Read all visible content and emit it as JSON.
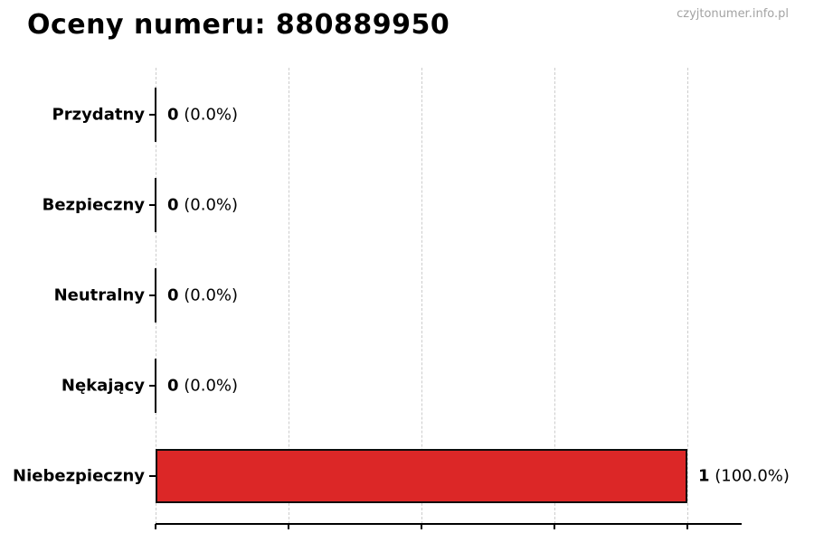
{
  "header": {
    "title": "Oceny numeru: 880889950",
    "watermark": "czyjtonumer.info.pl"
  },
  "chart_data": {
    "type": "bar",
    "orientation": "horizontal",
    "title": "Oceny numeru: 880889950",
    "categories": [
      "Przydatny",
      "Bezpieczny",
      "Neutralny",
      "Nękający",
      "Niebezpieczny"
    ],
    "values": [
      0,
      0,
      0,
      0,
      1
    ],
    "percentages": [
      0.0,
      0.0,
      0.0,
      0.0,
      100.0
    ],
    "value_labels": [
      "0 (0.0%)",
      "0 (0.0%)",
      "0 (0.0%)",
      "0 (0.0%)",
      "1 (100.0%)"
    ],
    "xlabel": "",
    "ylabel": "",
    "xlim": [
      0,
      1.1
    ],
    "gridline_values": [
      0,
      0.25,
      0.5,
      0.75,
      1.0
    ],
    "grid": true,
    "legend": false,
    "bar_color": "#dc2727",
    "bar_edge_color": "#0d0d0d",
    "zero_bar_color": "#000000",
    "background_color": "#ffffff"
  }
}
